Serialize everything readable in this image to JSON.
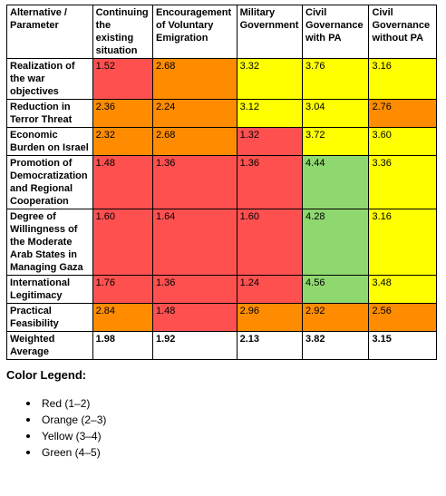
{
  "table": {
    "headers": [
      "Alternative / Parameter",
      "Continuing the existing situation",
      "Encouragement of Voluntary Emigration",
      "Military Government",
      "Civil Governance with PA",
      "Civil Governance without PA"
    ],
    "rows": [
      {
        "parameter": "Realization of the war objectives",
        "values": [
          "1.52",
          "2.68",
          "3.32",
          "3.76",
          "3.16"
        ],
        "colors": [
          "red",
          "orange",
          "yellow",
          "yellow",
          "yellow"
        ]
      },
      {
        "parameter": "Reduction in Terror Threat",
        "values": [
          "2.36",
          "2.24",
          "3.12",
          "3.04",
          "2.76"
        ],
        "colors": [
          "orange",
          "orange",
          "yellow",
          "yellow",
          "orange"
        ]
      },
      {
        "parameter": "Economic Burden on Israel",
        "values": [
          "2.32",
          "2.68",
          "1.32",
          "3.72",
          "3.60"
        ],
        "colors": [
          "orange",
          "orange",
          "red",
          "yellow",
          "yellow"
        ]
      },
      {
        "parameter": "Promotion of Democratization and Regional Cooperation",
        "values": [
          "1.48",
          "1.36",
          "1.36",
          "4.44",
          "3.36"
        ],
        "colors": [
          "red",
          "red",
          "red",
          "green",
          "yellow"
        ]
      },
      {
        "parameter": "Degree of Willingness of the Moderate Arab States in Managing Gaza",
        "values": [
          "1.60",
          "1.64",
          "1.60",
          "4.28",
          "3.16"
        ],
        "colors": [
          "red",
          "red",
          "red",
          "green",
          "yellow"
        ]
      },
      {
        "parameter": "International Legitimacy",
        "values": [
          "1.76",
          "1.36",
          "1.24",
          "4.56",
          "3.48"
        ],
        "colors": [
          "red",
          "red",
          "red",
          "green",
          "yellow"
        ]
      },
      {
        "parameter": "Practical Feasibility",
        "values": [
          "2.84",
          "1.48",
          "2.96",
          "2.92",
          "2.56"
        ],
        "colors": [
          "orange",
          "red",
          "orange",
          "orange",
          "orange"
        ]
      }
    ],
    "average_row": {
      "parameter": "Weighted Average",
      "values": [
        "1.98",
        "1.92",
        "2.13",
        "3.82",
        "3.15"
      ]
    }
  },
  "colors": {
    "red": "#ff5050",
    "orange": "#ff8c00",
    "yellow": "#ffff00",
    "green": "#8fd86f"
  },
  "legend": {
    "title": "Color Legend:",
    "items": [
      "Red (1–2)",
      "Orange (2–3)",
      "Yellow (3–4)",
      "Green (4–5)"
    ]
  }
}
